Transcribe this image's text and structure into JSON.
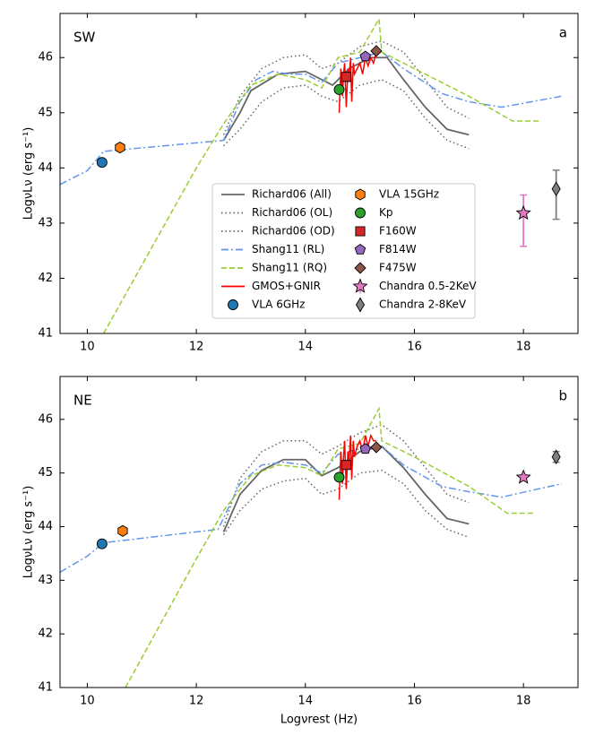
{
  "chart_data": [
    {
      "type": "line",
      "title": "SW",
      "panel_label": "a",
      "ylabel": "LogνLν (erg s⁻¹)",
      "legend": "center",
      "xlim": [
        9.5,
        19.0
      ],
      "xticks": [
        10,
        12,
        14,
        16,
        18
      ],
      "ylim": [
        41,
        46.8
      ],
      "yticks": [
        41,
        42,
        43,
        44,
        45,
        46
      ],
      "series": [
        {
          "name": "Richard06 (All)",
          "color": "#666666",
          "style": "solid",
          "x": [
            12.5,
            12.8,
            13.0,
            13.5,
            14.0,
            14.3,
            14.5,
            14.8,
            15.2,
            15.5,
            15.8,
            16.2,
            16.6,
            17.0
          ],
          "values": [
            44.5,
            45.0,
            45.4,
            45.7,
            45.75,
            45.6,
            45.5,
            45.8,
            46.0,
            46.0,
            45.6,
            45.1,
            44.7,
            44.6
          ]
        },
        {
          "name": "Richard06 (OL)",
          "color": "#666666",
          "style": "dotted",
          "x": [
            12.5,
            12.8,
            13.2,
            13.6,
            14.0,
            14.3,
            14.6,
            15.0,
            15.4,
            15.8,
            16.2,
            16.6,
            17.0
          ],
          "values": [
            44.6,
            45.3,
            45.8,
            46.0,
            46.05,
            45.8,
            45.9,
            46.2,
            46.3,
            46.1,
            45.6,
            45.1,
            44.9
          ]
        },
        {
          "name": "Richard06 (OD)",
          "color": "#666666",
          "style": "dotted",
          "x": [
            12.5,
            12.8,
            13.2,
            13.6,
            14.0,
            14.3,
            14.6,
            15.0,
            15.4,
            15.8,
            16.2,
            16.6,
            17.0
          ],
          "values": [
            44.4,
            44.7,
            45.2,
            45.45,
            45.5,
            45.3,
            45.2,
            45.5,
            45.6,
            45.4,
            44.9,
            44.5,
            44.35
          ]
        },
        {
          "name": "Shang11 (RL)",
          "color": "#6495ed",
          "style": "dashdot",
          "x": [
            9.5,
            10.0,
            10.3,
            12.5,
            12.8,
            13.1,
            13.4,
            13.7,
            14.0,
            14.3,
            14.6,
            15.0,
            15.4,
            15.8,
            16.5,
            17.0,
            17.6,
            18.7
          ],
          "values": [
            43.7,
            43.95,
            44.3,
            44.5,
            45.2,
            45.6,
            45.75,
            45.7,
            45.7,
            45.55,
            45.9,
            46.0,
            46.1,
            45.8,
            45.35,
            45.2,
            45.1,
            45.3
          ]
        },
        {
          "name": "Shang11 (RQ)",
          "color": "#9acd32",
          "style": "dashed",
          "x": [
            10.3,
            12.0,
            12.5,
            13.0,
            13.5,
            14.0,
            14.3,
            14.6,
            15.0,
            15.35,
            15.4,
            16.0,
            17.0,
            17.8,
            18.3
          ],
          "values": [
            41.0,
            44.0,
            44.8,
            45.5,
            45.7,
            45.6,
            45.45,
            46.0,
            46.1,
            46.7,
            46.1,
            45.8,
            45.3,
            44.85,
            44.85
          ]
        },
        {
          "name": "GMOS+GNIR",
          "color": "#ff0000",
          "style": "solid",
          "x": [
            14.62,
            14.65,
            14.68,
            14.7,
            14.72,
            14.75,
            14.78,
            14.8,
            14.83,
            14.85,
            14.88,
            14.9,
            14.95,
            15.0,
            15.05,
            15.1,
            15.15,
            15.2,
            15.25,
            15.3
          ],
          "values": [
            45.0,
            45.8,
            45.3,
            45.7,
            45.9,
            45.1,
            45.8,
            45.6,
            46.0,
            45.2,
            45.9,
            45.7,
            45.8,
            45.9,
            45.7,
            46.0,
            45.85,
            46.0,
            45.9,
            46.1
          ]
        },
        {
          "name": "VLA 6GHz",
          "color": "#1f77b4",
          "marker": "o",
          "x": [
            10.27
          ],
          "values": [
            44.1
          ]
        },
        {
          "name": "VLA 15GHz",
          "color": "#ff7f0e",
          "marker": "h",
          "x": [
            10.6
          ],
          "values": [
            44.37
          ]
        },
        {
          "name": "Kp",
          "color": "#2ca02c",
          "marker": "o",
          "x": [
            14.62
          ],
          "values": [
            45.42
          ]
        },
        {
          "name": "F160W",
          "color": "#d62728",
          "marker": "s",
          "x": [
            14.75
          ],
          "values": [
            45.65
          ]
        },
        {
          "name": "F814W",
          "color": "#9467bd",
          "marker": "p",
          "x": [
            15.1
          ],
          "values": [
            46.02
          ]
        },
        {
          "name": "F475W",
          "color": "#8c564b",
          "marker": "D",
          "x": [
            15.3
          ],
          "values": [
            46.12
          ]
        },
        {
          "name": "Chandra 0.5-2KeV",
          "color": "#e377c2",
          "marker": "*",
          "x": [
            18.0
          ],
          "values": [
            43.18
          ],
          "errors": [
            [
              0.6,
              0.33
            ]
          ]
        },
        {
          "name": "Chandra 2-8KeV",
          "color": "#7f7f7f",
          "marker": "d",
          "x": [
            18.6
          ],
          "values": [
            43.62
          ],
          "errors": [
            [
              0.55,
              0.34
            ]
          ]
        }
      ]
    },
    {
      "type": "line",
      "title": "NE",
      "panel_label": "b",
      "ylabel": "LogνLν (erg s⁻¹)",
      "xlabel": "Logνrest (Hz)",
      "xlim": [
        9.5,
        19.0
      ],
      "xticks": [
        10,
        12,
        14,
        16,
        18
      ],
      "ylim": [
        41,
        46.8
      ],
      "yticks": [
        41,
        42,
        43,
        44,
        45,
        46
      ],
      "series": [
        {
          "color": "#666666",
          "style": "solid",
          "x": [
            12.5,
            12.8,
            13.2,
            13.6,
            14.0,
            14.3,
            14.6,
            15.0,
            15.4,
            15.8,
            16.2,
            16.6,
            17.0
          ],
          "values": [
            43.9,
            44.6,
            45.05,
            45.25,
            45.25,
            44.95,
            45.1,
            45.4,
            45.5,
            45.1,
            44.6,
            44.15,
            44.05
          ]
        },
        {
          "color": "#666666",
          "style": "dotted",
          "x": [
            12.5,
            12.8,
            13.2,
            13.6,
            14.0,
            14.3,
            14.6,
            15.0,
            15.4,
            15.8,
            16.2,
            16.6,
            17.0
          ],
          "values": [
            44.0,
            44.9,
            45.4,
            45.6,
            45.6,
            45.35,
            45.5,
            45.75,
            45.9,
            45.6,
            45.1,
            44.6,
            44.45
          ]
        },
        {
          "color": "#666666",
          "style": "dotted",
          "x": [
            12.5,
            12.8,
            13.2,
            13.6,
            14.0,
            14.3,
            14.6,
            15.0,
            15.4,
            15.8,
            16.2,
            16.6,
            17.0
          ],
          "values": [
            43.85,
            44.3,
            44.7,
            44.85,
            44.9,
            44.6,
            44.7,
            45.0,
            45.05,
            44.8,
            44.3,
            43.95,
            43.8
          ]
        },
        {
          "color": "#6495ed",
          "style": "dashdot",
          "x": [
            9.5,
            10.0,
            10.3,
            12.4,
            12.8,
            13.2,
            13.6,
            14.0,
            14.3,
            14.6,
            15.0,
            15.4,
            15.8,
            16.5,
            17.0,
            17.6,
            18.7
          ],
          "values": [
            43.15,
            43.45,
            43.7,
            43.95,
            44.8,
            45.15,
            45.2,
            45.15,
            45.0,
            45.35,
            45.45,
            45.5,
            45.15,
            44.75,
            44.65,
            44.55,
            44.8
          ]
        },
        {
          "color": "#9acd32",
          "style": "dashed",
          "x": [
            10.7,
            12.0,
            12.5,
            13.0,
            13.5,
            14.0,
            14.3,
            14.6,
            15.0,
            15.35,
            15.4,
            16.0,
            17.0,
            17.7,
            18.2
          ],
          "values": [
            41.0,
            43.4,
            44.3,
            44.95,
            45.15,
            45.1,
            44.95,
            45.45,
            45.55,
            46.2,
            45.6,
            45.3,
            44.75,
            44.25,
            44.25
          ]
        },
        {
          "color": "#ff0000",
          "style": "solid",
          "x": [
            14.62,
            14.65,
            14.68,
            14.7,
            14.72,
            14.75,
            14.78,
            14.8,
            14.83,
            14.85,
            14.88,
            14.9,
            14.95,
            15.0,
            15.05,
            15.1,
            15.15,
            15.2,
            15.25,
            15.3
          ],
          "values": [
            44.5,
            45.4,
            44.8,
            45.3,
            45.6,
            44.7,
            45.4,
            45.2,
            45.7,
            44.9,
            45.6,
            45.3,
            45.5,
            45.6,
            45.4,
            45.7,
            45.5,
            45.7,
            45.6,
            45.6
          ]
        },
        {
          "color": "#1f77b4",
          "marker": "o",
          "x": [
            10.27
          ],
          "values": [
            43.68
          ]
        },
        {
          "color": "#ff7f0e",
          "marker": "h",
          "x": [
            10.65
          ],
          "values": [
            43.92
          ]
        },
        {
          "color": "#2ca02c",
          "marker": "o",
          "x": [
            14.62
          ],
          "values": [
            44.92
          ]
        },
        {
          "color": "#d62728",
          "marker": "s",
          "x": [
            14.75
          ],
          "values": [
            45.15
          ]
        },
        {
          "color": "#9467bd",
          "marker": "p",
          "x": [
            15.1
          ],
          "values": [
            45.45
          ]
        },
        {
          "color": "#8c564b",
          "marker": "D",
          "x": [
            15.3
          ],
          "values": [
            45.48
          ]
        },
        {
          "color": "#e377c2",
          "marker": "*",
          "x": [
            18.0
          ],
          "values": [
            44.92
          ]
        },
        {
          "color": "#7f7f7f",
          "marker": "d",
          "x": [
            18.6
          ],
          "values": [
            45.3
          ],
          "errors": [
            [
              0.1,
              0.1
            ]
          ]
        }
      ]
    }
  ]
}
